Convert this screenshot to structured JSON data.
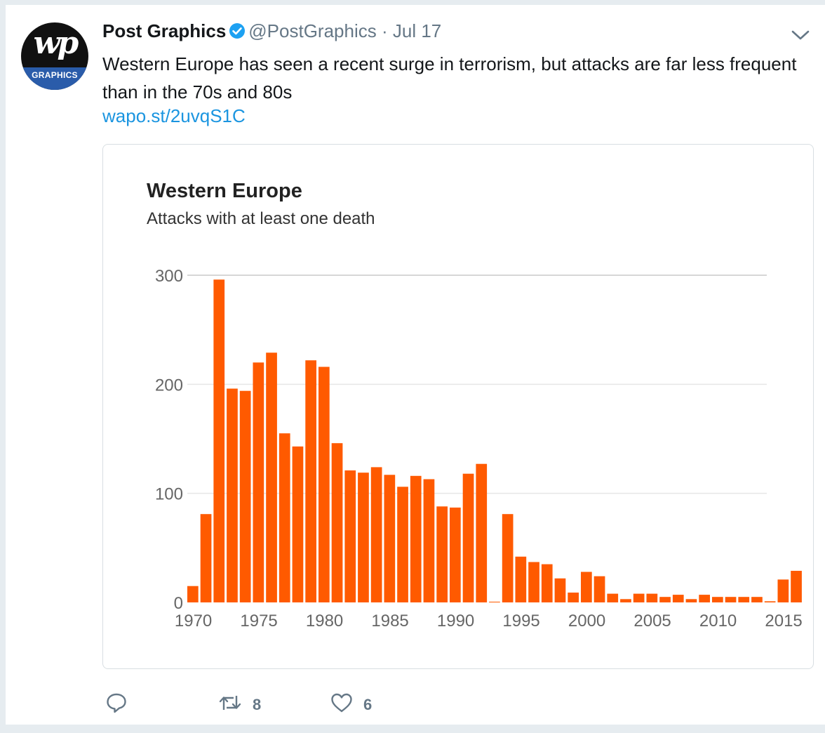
{
  "tweet": {
    "author_name": "Post Graphics",
    "handle": "@PostGraphics",
    "separator": "·",
    "date": "Jul 17",
    "text": "Western Europe has seen a recent surge in terrorism, but attacks are far less frequent than  in the 70s and 80s",
    "link": "wapo.st/2uvqS1C",
    "avatar_text": "wp",
    "avatar_band_text": "GRAPHICS",
    "retweet_count": "8",
    "like_count": "6"
  },
  "icons": {
    "verified": "verified-badge-icon",
    "menu": "chevron-down-icon",
    "reply": "reply-icon",
    "retweet": "retweet-icon",
    "like": "heart-icon"
  },
  "colors": {
    "bar": "#ff5a00",
    "link": "#1b95e0",
    "verified": "#1da1f2",
    "muted": "#657786"
  },
  "chart_data": {
    "type": "bar",
    "title": "Western Europe",
    "subtitle": "Attacks with at least one death",
    "x": [
      1970,
      1971,
      1972,
      1973,
      1974,
      1975,
      1976,
      1977,
      1978,
      1979,
      1980,
      1981,
      1982,
      1983,
      1984,
      1985,
      1986,
      1987,
      1988,
      1989,
      1990,
      1991,
      1992,
      1993,
      1994,
      1995,
      1996,
      1997,
      1998,
      1999,
      2000,
      2001,
      2002,
      2003,
      2004,
      2005,
      2006,
      2007,
      2008,
      2009,
      2010,
      2011,
      2012,
      2013,
      2014,
      2015,
      2016
    ],
    "values": [
      15,
      81,
      296,
      196,
      194,
      220,
      229,
      155,
      143,
      222,
      216,
      146,
      121,
      119,
      124,
      117,
      106,
      116,
      113,
      88,
      87,
      118,
      127,
      0,
      81,
      42,
      37,
      35,
      22,
      9,
      28,
      24,
      8,
      3,
      8,
      8,
      5,
      7,
      3,
      7,
      5,
      5,
      5,
      5,
      1,
      21,
      29
    ],
    "xticks": [
      "1970",
      "1975",
      "1980",
      "1985",
      "1990",
      "1995",
      "2000",
      "2005",
      "2010",
      "2015"
    ],
    "yticks": [
      "0",
      "100",
      "200",
      "300"
    ],
    "ylim": [
      0,
      300
    ],
    "grid": true
  }
}
